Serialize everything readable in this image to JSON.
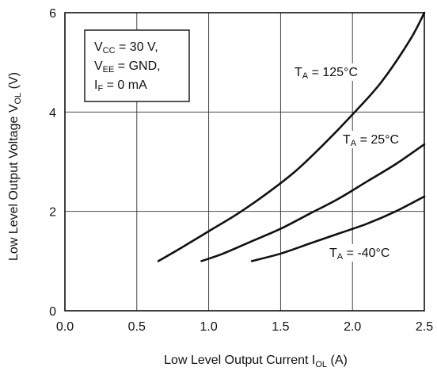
{
  "chart_data": {
    "type": "line",
    "title": "",
    "xlabel": {
      "main": "Low Level Output Current  I",
      "sub": "OL",
      "unit": " (A)"
    },
    "ylabel": {
      "main": "Low Level Output Voltage  V",
      "sub": "OL",
      "unit": " (V)"
    },
    "xlim": [
      0.0,
      2.5
    ],
    "ylim": [
      0,
      6
    ],
    "xticks": [
      "0.0",
      "0.5",
      "1.0",
      "1.5",
      "2.0",
      "2.5"
    ],
    "yticks": [
      "0",
      "2",
      "4",
      "6"
    ],
    "grid": true,
    "conditions": [
      {
        "main": "V",
        "sub": "CC",
        "rest": " = 30 V,"
      },
      {
        "main": "V",
        "sub": "EE",
        "rest": " = GND,"
      },
      {
        "main": "I",
        "sub": "F",
        "rest": " = 0 mA"
      }
    ],
    "series": [
      {
        "label": {
          "main": "T",
          "sub": "A",
          "rest": " = 125°C"
        },
        "x": [
          0.65,
          0.8,
          1.0,
          1.2,
          1.4,
          1.6,
          1.8,
          2.0,
          2.2,
          2.4,
          2.5
        ],
        "y": [
          1.0,
          1.25,
          1.6,
          1.95,
          2.35,
          2.8,
          3.35,
          3.95,
          4.6,
          5.45,
          6.0
        ]
      },
      {
        "label": {
          "main": "T",
          "sub": "A",
          "rest": " = 25°C"
        },
        "x": [
          0.95,
          1.1,
          1.3,
          1.5,
          1.7,
          1.9,
          2.1,
          2.3,
          2.5
        ],
        "y": [
          1.0,
          1.15,
          1.4,
          1.65,
          1.95,
          2.25,
          2.6,
          2.95,
          3.35
        ]
      },
      {
        "label": {
          "main": "T",
          "sub": "A",
          "rest": " = -40°C"
        },
        "x": [
          1.3,
          1.5,
          1.7,
          1.9,
          2.1,
          2.3,
          2.5
        ],
        "y": [
          1.0,
          1.15,
          1.35,
          1.55,
          1.75,
          2.0,
          2.3
        ]
      }
    ]
  }
}
